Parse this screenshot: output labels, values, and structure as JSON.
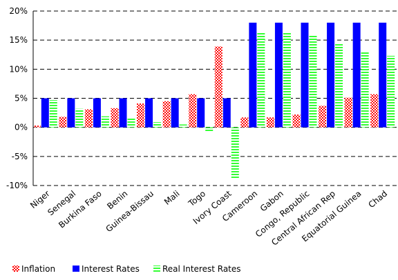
{
  "chart_data": {
    "type": "bar",
    "title": "",
    "xlabel": "",
    "ylabel": "",
    "ylim": [
      -0.1,
      0.2
    ],
    "yticks": [
      "-10%",
      "-5%",
      "0%",
      "5%",
      "10%",
      "15%",
      "20%"
    ],
    "ytick_values": [
      -0.1,
      -0.05,
      0.0,
      0.05,
      0.1,
      0.15,
      0.2
    ],
    "grid": true,
    "legend_position": "bottom",
    "categories": [
      "Niger",
      "Senegal",
      "Burkina Faso",
      "Benin",
      "Guinea-Bissau",
      "Mali",
      "Togo",
      "Ivory Coast",
      "Cameroon",
      "Gabon",
      "Congo, Republic",
      "Central African Rep",
      "Equatorial Guinea",
      "Chad"
    ],
    "series": [
      {
        "name": "Inflation",
        "color": "#ff0000",
        "pattern": "checker-red",
        "values": [
          0.003,
          0.018,
          0.031,
          0.033,
          0.041,
          0.045,
          0.057,
          0.139,
          0.017,
          0.017,
          0.022,
          0.037,
          0.051,
          0.057
        ]
      },
      {
        "name": "Interest Rates",
        "color": "#0000ff",
        "pattern": "solid",
        "values": [
          0.05,
          0.05,
          0.05,
          0.05,
          0.05,
          0.05,
          0.05,
          0.05,
          0.18,
          0.18,
          0.18,
          0.18,
          0.18,
          0.18
        ]
      },
      {
        "name": "Real Interest Rates",
        "color": "#33ff33",
        "pattern": "stripe-green",
        "values": [
          0.047,
          0.032,
          0.019,
          0.017,
          0.009,
          0.005,
          -0.007,
          -0.089,
          0.163,
          0.163,
          0.158,
          0.143,
          0.129,
          0.123
        ]
      }
    ]
  }
}
